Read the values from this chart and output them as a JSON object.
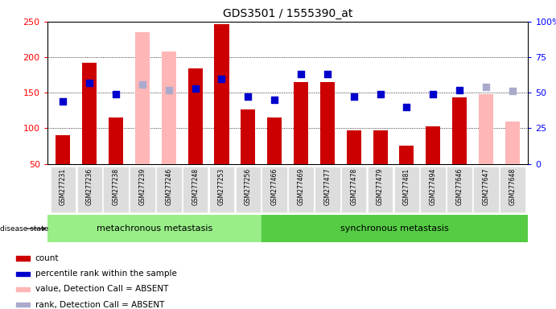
{
  "title": "GDS3501 / 1555390_at",
  "samples": [
    "GSM277231",
    "GSM277236",
    "GSM277238",
    "GSM277239",
    "GSM277246",
    "GSM277248",
    "GSM277253",
    "GSM277256",
    "GSM277466",
    "GSM277469",
    "GSM277477",
    "GSM277478",
    "GSM277479",
    "GSM277481",
    "GSM277494",
    "GSM277646",
    "GSM277647",
    "GSM277648"
  ],
  "count_values": [
    90,
    192,
    115,
    null,
    null,
    184,
    247,
    126,
    115,
    165,
    165,
    97,
    97,
    76,
    103,
    143,
    null,
    null
  ],
  "count_absent": [
    null,
    null,
    null,
    235,
    208,
    null,
    null,
    null,
    null,
    null,
    null,
    null,
    null,
    null,
    null,
    null,
    148,
    110
  ],
  "rank_values": [
    44,
    57,
    49,
    null,
    null,
    53,
    60,
    47,
    45,
    63,
    63,
    47,
    49,
    40,
    49,
    52,
    null,
    null
  ],
  "rank_absent": [
    null,
    null,
    null,
    56,
    52,
    null,
    null,
    null,
    null,
    null,
    null,
    null,
    null,
    null,
    null,
    null,
    54,
    51
  ],
  "meta_count": 8,
  "sync_count": 10,
  "bar_color_present": "#cc0000",
  "bar_color_absent": "#ffb6b6",
  "dot_color_present": "#0000cc",
  "dot_color_absent": "#aaaacc",
  "ylim_left": [
    50,
    250
  ],
  "ylim_right": [
    0,
    100
  ],
  "bg_color": "#dddddd",
  "group_color_meta": "#99ee88",
  "group_color_sync": "#55cc44",
  "legend_items": [
    "count",
    "percentile rank within the sample",
    "value, Detection Call = ABSENT",
    "rank, Detection Call = ABSENT"
  ],
  "legend_colors": [
    "#cc0000",
    "#0000cc",
    "#ffb6b6",
    "#aaaacc"
  ],
  "left_yticks": [
    50,
    100,
    150,
    200,
    250
  ],
  "right_yticks": [
    0,
    25,
    50,
    75,
    100
  ],
  "right_yticklabels": [
    "0",
    "25",
    "50",
    "75",
    "100%"
  ],
  "gridlines": [
    100,
    150,
    200
  ]
}
